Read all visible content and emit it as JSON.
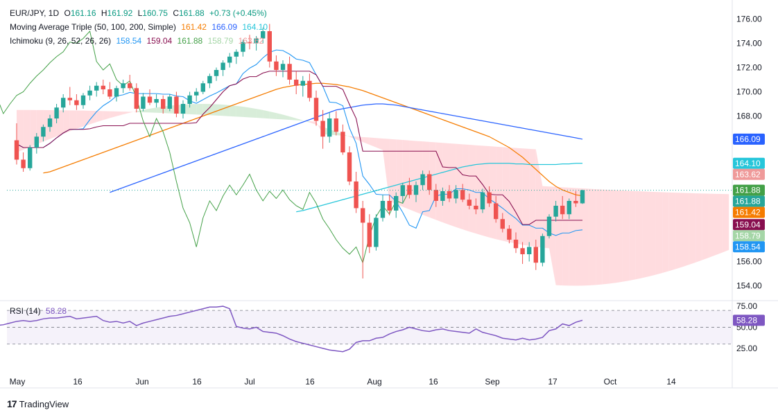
{
  "header": {
    "symbol": "EUR/JPY, 1D",
    "open_label": "O",
    "open": "161.16",
    "high_label": "H",
    "high": "161.92",
    "low_label": "L",
    "low": "160.75",
    "close_label": "C",
    "close": "161.88",
    "change": "+0.73 (+0.45%)"
  },
  "indicators": {
    "ma": {
      "label": "Moving Average Triple (50, 100, 200, Simple)",
      "v1": "161.42",
      "v2": "166.09",
      "v3": "164.10",
      "c1": "#f57c00",
      "c2": "#2962ff",
      "c3": "#26c6da"
    },
    "ichimoku": {
      "label": "Ichimoku (9, 26, 52, 26, 26)",
      "v1": "158.54",
      "v2": "159.04",
      "v3": "161.88",
      "v4": "158.79",
      "v5": "163.62",
      "c1": "#2196f3",
      "c2": "#880e4f",
      "c3": "#43a047",
      "c4": "#a5d6a7",
      "c5": "#ef9a9a"
    },
    "rsi": {
      "label": "RSI (14)",
      "value": "58.28",
      "color": "#7e57c2"
    }
  },
  "brand": "TradingView",
  "colors": {
    "up": "#26a69a",
    "down": "#ef5350",
    "ma50": "#f57c00",
    "ma100": "#2962ff",
    "ma200": "#26c6da",
    "tenkan": "#2196f3",
    "kijun": "#880e4f",
    "chikou": "#43a047",
    "cloud_bull": "#c8e6c9",
    "cloud_bear": "#ffcdd2",
    "rsi": "#7e57c2"
  },
  "chart_data": {
    "type": "candlestick",
    "symbol": "EUR/JPY",
    "timeframe": "1D",
    "price_axis_ticks": [
      "154.00",
      "156.00",
      "158.00",
      "160.00",
      "162.00",
      "164.00",
      "166.00",
      "168.00",
      "170.00",
      "172.00",
      "174.00",
      "176.00"
    ],
    "price_range": [
      153.0,
      177.0
    ],
    "time_axis_labels": [
      "May",
      "16",
      "Jun",
      "16",
      "Jul",
      "16",
      "Aug",
      "16",
      "Sep",
      "17",
      "Oct",
      "14"
    ],
    "price_labels": [
      {
        "value": "166.09",
        "color": "#2962ff"
      },
      {
        "value": "164.10",
        "color": "#26c6da"
      },
      {
        "value": "163.62",
        "color": "#ef9a9a"
      },
      {
        "value": "161.88",
        "color": "#43a047"
      },
      {
        "value": "161.88",
        "color": "#26a69a"
      },
      {
        "value": "161.42",
        "color": "#f57c00"
      },
      {
        "value": "159.04",
        "color": "#880e4f"
      },
      {
        "value": "158.79",
        "color": "#a5d6a7"
      },
      {
        "value": "158.54",
        "color": "#2196f3"
      }
    ],
    "candles": [
      [
        166.0,
        167.4,
        164.0,
        164.4
      ],
      [
        164.4,
        165.0,
        163.4,
        163.7
      ],
      [
        163.7,
        165.6,
        163.5,
        165.4
      ],
      [
        165.4,
        166.6,
        164.9,
        166.3
      ],
      [
        166.3,
        167.3,
        165.9,
        167.1
      ],
      [
        167.1,
        168.1,
        166.7,
        167.8
      ],
      [
        167.8,
        169.0,
        167.4,
        168.7
      ],
      [
        168.7,
        169.8,
        168.3,
        169.5
      ],
      [
        169.5,
        170.4,
        168.9,
        169.3
      ],
      [
        169.3,
        169.8,
        168.5,
        168.9
      ],
      [
        168.9,
        169.9,
        168.6,
        169.7
      ],
      [
        169.7,
        170.5,
        169.3,
        170.1
      ],
      [
        170.1,
        170.8,
        169.6,
        170.5
      ],
      [
        170.5,
        171.0,
        169.8,
        170.2
      ],
      [
        170.2,
        170.8,
        169.4,
        169.6
      ],
      [
        169.6,
        170.5,
        169.2,
        170.3
      ],
      [
        170.3,
        171.0,
        169.9,
        170.7
      ],
      [
        170.7,
        171.4,
        170.1,
        170.3
      ],
      [
        170.3,
        170.7,
        168.3,
        168.6
      ],
      [
        168.6,
        169.9,
        168.4,
        169.6
      ],
      [
        169.6,
        170.2,
        168.9,
        169.1
      ],
      [
        169.1,
        169.8,
        168.7,
        169.4
      ],
      [
        169.4,
        169.7,
        168.2,
        168.6
      ],
      [
        168.6,
        169.8,
        168.4,
        169.6
      ],
      [
        169.6,
        170.0,
        167.9,
        168.2
      ],
      [
        168.2,
        169.3,
        167.8,
        169.0
      ],
      [
        169.0,
        170.0,
        168.7,
        169.7
      ],
      [
        169.7,
        170.3,
        169.2,
        170.0
      ],
      [
        170.0,
        170.9,
        169.8,
        170.7
      ],
      [
        170.7,
        171.5,
        170.3,
        171.3
      ],
      [
        171.3,
        172.0,
        170.9,
        171.8
      ],
      [
        171.8,
        172.6,
        171.3,
        172.4
      ],
      [
        172.4,
        173.2,
        172.0,
        172.9
      ],
      [
        172.9,
        173.5,
        172.3,
        173.3
      ],
      [
        173.3,
        174.3,
        172.9,
        174.1
      ],
      [
        174.1,
        174.7,
        173.5,
        174.0
      ],
      [
        174.0,
        174.6,
        173.4,
        174.4
      ],
      [
        174.4,
        175.3,
        174.0,
        175.0
      ],
      [
        175.0,
        175.6,
        172.0,
        172.5
      ],
      [
        172.5,
        173.0,
        171.3,
        171.8
      ],
      [
        171.8,
        172.6,
        171.2,
        172.3
      ],
      [
        172.3,
        172.9,
        170.6,
        171.0
      ],
      [
        171.0,
        171.7,
        169.8,
        170.5
      ],
      [
        170.5,
        171.3,
        169.6,
        170.9
      ],
      [
        170.9,
        171.5,
        169.2,
        169.5
      ],
      [
        169.5,
        170.1,
        167.2,
        167.6
      ],
      [
        167.6,
        168.5,
        165.3,
        166.3
      ],
      [
        166.3,
        168.3,
        165.8,
        167.8
      ],
      [
        167.8,
        168.4,
        166.4,
        166.7
      ],
      [
        166.7,
        167.3,
        164.8,
        165.0
      ],
      [
        165.0,
        165.5,
        162.3,
        162.6
      ],
      [
        162.6,
        163.4,
        160.0,
        160.4
      ],
      [
        160.4,
        161.0,
        154.6,
        159.2
      ],
      [
        159.2,
        159.9,
        156.7,
        157.2
      ],
      [
        157.2,
        159.9,
        156.9,
        159.6
      ],
      [
        159.6,
        161.5,
        159.3,
        161.0
      ],
      [
        161.0,
        161.5,
        159.8,
        160.2
      ],
      [
        160.2,
        161.7,
        159.6,
        161.4
      ],
      [
        161.4,
        162.5,
        160.8,
        162.3
      ],
      [
        162.3,
        162.9,
        161.2,
        161.5
      ],
      [
        161.5,
        162.6,
        160.9,
        162.3
      ],
      [
        162.3,
        163.5,
        161.9,
        163.2
      ],
      [
        163.2,
        163.5,
        161.5,
        161.9
      ],
      [
        161.9,
        162.4,
        160.5,
        161.0
      ],
      [
        161.0,
        162.1,
        160.6,
        161.8
      ],
      [
        161.8,
        162.3,
        160.9,
        161.2
      ],
      [
        161.2,
        162.3,
        160.8,
        161.9
      ],
      [
        161.9,
        162.4,
        160.9,
        161.1
      ],
      [
        161.1,
        161.6,
        160.3,
        160.6
      ],
      [
        160.6,
        161.2,
        159.9,
        160.3
      ],
      [
        160.3,
        162.0,
        160.0,
        161.7
      ],
      [
        161.7,
        162.2,
        160.5,
        160.8
      ],
      [
        160.8,
        161.4,
        159.2,
        159.5
      ],
      [
        159.5,
        160.0,
        158.4,
        158.7
      ],
      [
        158.7,
        159.0,
        157.5,
        157.8
      ],
      [
        157.8,
        158.4,
        156.7,
        157.1
      ],
      [
        157.1,
        157.6,
        155.8,
        156.6
      ],
      [
        156.6,
        157.6,
        156.0,
        157.2
      ],
      [
        157.2,
        157.8,
        155.3,
        155.9
      ],
      [
        155.9,
        158.3,
        155.6,
        158.1
      ],
      [
        158.1,
        159.9,
        157.9,
        159.7
      ],
      [
        159.7,
        161.0,
        159.3,
        160.6
      ],
      [
        160.6,
        161.4,
        159.5,
        159.9
      ],
      [
        159.9,
        161.2,
        159.5,
        161.0
      ],
      [
        161.0,
        161.8,
        160.5,
        160.8
      ],
      [
        160.8,
        161.92,
        160.75,
        161.88
      ]
    ],
    "ma50": [
      163.3,
      163.4,
      163.6,
      163.8,
      164.0,
      164.2,
      164.4,
      164.6,
      164.8,
      165.0,
      165.2,
      165.4,
      165.6,
      165.8,
      166.0,
      166.2,
      166.4,
      166.6,
      166.8,
      167.0,
      167.2,
      167.4,
      167.6,
      167.8,
      168.0,
      168.2,
      168.4,
      168.6,
      168.8,
      169.0,
      169.2,
      169.4,
      169.6,
      169.8,
      170.0,
      170.2,
      170.35,
      170.45,
      170.55,
      170.6,
      170.65,
      170.7,
      170.7,
      170.65,
      170.6,
      170.5,
      170.4,
      170.25,
      170.1,
      169.9,
      169.7,
      169.5,
      169.3,
      169.1,
      168.9,
      168.7,
      168.5,
      168.3,
      168.1,
      167.9,
      167.7,
      167.5,
      167.3,
      167.1,
      166.9,
      166.7,
      166.5,
      166.3,
      166.0,
      165.7,
      165.4,
      165.0,
      164.6,
      164.1,
      163.6,
      163.1,
      162.6,
      162.2,
      161.9,
      161.7,
      161.5,
      161.42
    ],
    "ma100": [
      161.7,
      161.9,
      162.1,
      162.3,
      162.5,
      162.7,
      162.9,
      163.1,
      163.3,
      163.5,
      163.7,
      163.9,
      164.1,
      164.3,
      164.5,
      164.7,
      164.9,
      165.1,
      165.3,
      165.5,
      165.7,
      165.9,
      166.1,
      166.3,
      166.5,
      166.7,
      166.9,
      167.1,
      167.3,
      167.5,
      167.7,
      167.9,
      168.1,
      168.3,
      168.5,
      168.6,
      168.7,
      168.8,
      168.9,
      168.95,
      169.0,
      169.0,
      168.95,
      168.9,
      168.8,
      168.7,
      168.6,
      168.5,
      168.4,
      168.3,
      168.2,
      168.1,
      168.0,
      167.9,
      167.8,
      167.7,
      167.6,
      167.5,
      167.4,
      167.3,
      167.2,
      167.1,
      167.0,
      166.9,
      166.8,
      166.7,
      166.6,
      166.5,
      166.4,
      166.3,
      166.2,
      166.09
    ],
    "ma200": [
      160.1,
      160.2,
      160.35,
      160.5,
      160.65,
      160.8,
      160.95,
      161.1,
      161.25,
      161.4,
      161.55,
      161.7,
      161.85,
      162.0,
      162.15,
      162.3,
      162.45,
      162.6,
      162.75,
      162.9,
      163.05,
      163.2,
      163.35,
      163.5,
      163.65,
      163.8,
      163.9,
      164.0,
      164.05,
      164.1,
      164.1,
      164.1,
      164.1,
      164.05,
      164.05,
      164.0,
      164.0,
      164.0,
      164.0,
      164.0,
      164.05,
      164.05,
      164.1,
      164.1
    ],
    "rsi": {
      "ticks": [
        "75.00",
        "50.00",
        "25.00"
      ],
      "range": [
        15,
        80
      ],
      "bands": [
        70,
        50,
        30
      ],
      "values": [
        55,
        50,
        49,
        52,
        53,
        55,
        57,
        58,
        57,
        58,
        60,
        61,
        61,
        62,
        63,
        60,
        61,
        62,
        63,
        58,
        56,
        57,
        55,
        57,
        52,
        55,
        57,
        59,
        61,
        63,
        64,
        66,
        68,
        70,
        72,
        74,
        74,
        75,
        72,
        51,
        49,
        48,
        50,
        45,
        44,
        43,
        40,
        36,
        33,
        31,
        29,
        27,
        25,
        23,
        22,
        21,
        24,
        32,
        34,
        34,
        37,
        38,
        42,
        45,
        47,
        50,
        48,
        46,
        45,
        47,
        48,
        46,
        45,
        44,
        43,
        48,
        44,
        42,
        40,
        37,
        36,
        35,
        37,
        35,
        36,
        38,
        46,
        48,
        54,
        52,
        56,
        58.28
      ],
      "value": "58.28"
    }
  }
}
